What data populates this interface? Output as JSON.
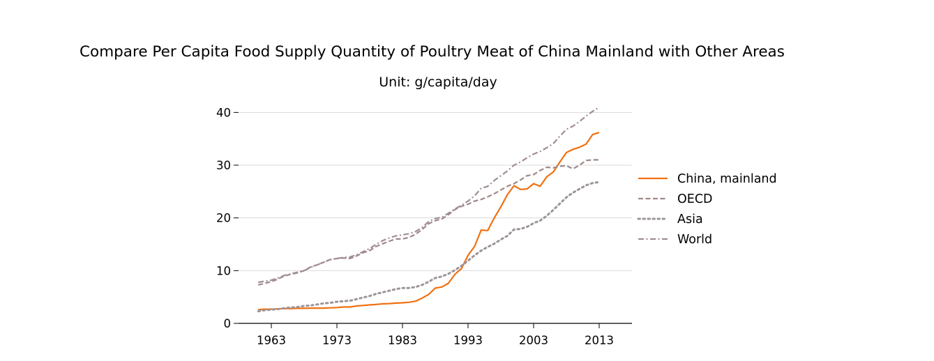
{
  "chart_data": {
    "type": "line",
    "title": "Compare Per Capita Food Supply Quantity of Poultry Meat of China Mainland with Other Areas",
    "subtitle": "Unit: g/capita/day",
    "xlabel": "",
    "ylabel": "",
    "xlim": [
      1958,
      2018
    ],
    "ylim": [
      0,
      40
    ],
    "xticks": [
      1963,
      1973,
      1983,
      1993,
      2003,
      2013
    ],
    "yticks": [
      0,
      10,
      20,
      30,
      40
    ],
    "grid": "y",
    "legend_position": "right",
    "x": [
      1961,
      1962,
      1963,
      1964,
      1965,
      1966,
      1967,
      1968,
      1969,
      1970,
      1971,
      1972,
      1973,
      1974,
      1975,
      1976,
      1977,
      1978,
      1979,
      1980,
      1981,
      1982,
      1983,
      1984,
      1985,
      1986,
      1987,
      1988,
      1989,
      1990,
      1991,
      1992,
      1993,
      1994,
      1995,
      1996,
      1997,
      1998,
      1999,
      2000,
      2001,
      2002,
      2003,
      2004,
      2005,
      2006,
      2007,
      2008,
      2009,
      2010,
      2011,
      2012,
      2013
    ],
    "series": [
      {
        "name": "China, mainland",
        "color": "#f07010",
        "dash": "solid",
        "values": [
          2.6,
          2.7,
          2.7,
          2.75,
          2.8,
          2.8,
          2.85,
          2.85,
          2.9,
          2.9,
          2.9,
          2.95,
          3.0,
          3.1,
          3.1,
          3.3,
          3.4,
          3.5,
          3.6,
          3.7,
          3.75,
          3.85,
          3.9,
          4.0,
          4.2,
          4.8,
          5.5,
          6.7,
          6.9,
          7.6,
          9.3,
          10.4,
          12.9,
          14.6,
          17.7,
          17.6,
          20.0,
          22.1,
          24.4,
          26.1,
          25.4,
          25.5,
          26.5,
          26.0,
          27.8,
          28.7,
          30.6,
          32.4,
          33.0,
          33.4,
          34.0,
          35.8,
          36.2
        ]
      },
      {
        "name": "OECD",
        "color": "#a08888",
        "dash": "dashed",
        "values": [
          7.3,
          7.6,
          7.9,
          8.4,
          9.0,
          9.3,
          9.6,
          10.0,
          10.7,
          11.1,
          11.6,
          12.1,
          12.3,
          12.4,
          12.3,
          12.8,
          13.4,
          13.8,
          14.6,
          15.1,
          15.6,
          16.0,
          16.0,
          16.3,
          16.9,
          17.8,
          18.9,
          19.5,
          19.8,
          20.6,
          21.6,
          22.2,
          22.6,
          23.2,
          23.5,
          24.0,
          24.6,
          25.3,
          26.0,
          26.5,
          27.2,
          28.0,
          28.2,
          29.0,
          29.6,
          29.5,
          29.8,
          29.9,
          29.3,
          30.0,
          30.9,
          31.0,
          31.0
        ]
      },
      {
        "name": "Asia",
        "color": "#9c9499",
        "dash": "dotted",
        "values": [
          2.3,
          2.5,
          2.6,
          2.7,
          2.9,
          3.0,
          3.1,
          3.3,
          3.4,
          3.6,
          3.8,
          3.9,
          4.1,
          4.2,
          4.3,
          4.6,
          4.9,
          5.2,
          5.6,
          5.9,
          6.2,
          6.5,
          6.7,
          6.7,
          6.9,
          7.3,
          7.9,
          8.6,
          8.9,
          9.4,
          10.1,
          10.9,
          11.9,
          12.9,
          13.8,
          14.5,
          15.1,
          15.9,
          16.6,
          17.8,
          17.9,
          18.3,
          19.0,
          19.5,
          20.4,
          21.5,
          22.7,
          23.9,
          24.8,
          25.5,
          26.2,
          26.6,
          26.8
        ]
      },
      {
        "name": "World",
        "color": "#a08c96",
        "dash": "dashdot",
        "values": [
          7.8,
          8.0,
          8.2,
          8.6,
          9.1,
          9.4,
          9.7,
          10.0,
          10.6,
          11.1,
          11.6,
          12.1,
          12.3,
          12.5,
          12.6,
          13.0,
          13.6,
          14.2,
          15.0,
          15.7,
          16.2,
          16.6,
          16.8,
          17.0,
          17.4,
          18.2,
          19.3,
          19.9,
          20.1,
          20.9,
          21.7,
          22.4,
          23.2,
          24.2,
          25.6,
          26.0,
          27.1,
          28.0,
          28.9,
          30.0,
          30.6,
          31.4,
          32.1,
          32.6,
          33.3,
          34.1,
          35.5,
          36.8,
          37.4,
          38.3,
          39.3,
          40.2,
          41.0
        ]
      }
    ]
  }
}
